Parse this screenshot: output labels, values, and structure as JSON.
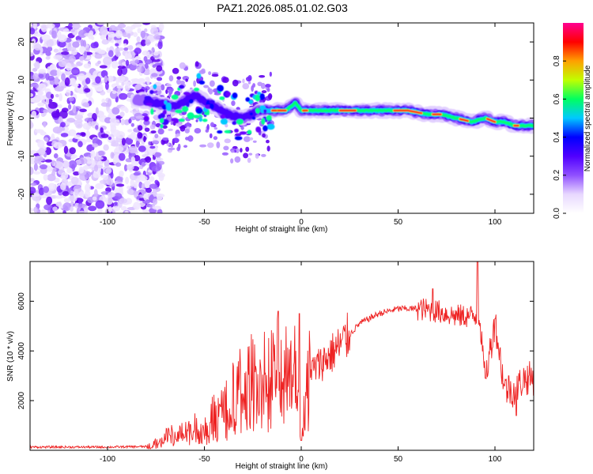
{
  "title": "PAZ1.2026.085.01.02.G03",
  "chart_data": [
    {
      "type": "heatmap",
      "title": "PAZ1.2026.085.01.02.G03",
      "xlabel": "Height of straight line (km)",
      "ylabel": "Frequency (Hz)",
      "xlim": [
        -140,
        120
      ],
      "ylim": [
        -25,
        25
      ],
      "xticks": [
        -100,
        -50,
        0,
        50,
        100
      ],
      "yticks": [
        -20,
        -10,
        0,
        10,
        20
      ],
      "xtick_labels": [
        "-100",
        "-50",
        "0",
        "50",
        "100"
      ],
      "ytick_labels": [
        "-20",
        "-10",
        "0",
        "10",
        "20"
      ],
      "colorbar": {
        "label": "Normalized spectral amplitude",
        "range": [
          0.0,
          1.0
        ],
        "ticks": [
          0.0,
          0.2,
          0.4,
          0.6,
          0.8
        ],
        "tick_labels": [
          "0.0",
          "0.2",
          "0.4",
          "0.6",
          "0.8"
        ],
        "colors": [
          "#ffffff",
          "#e8d8ff",
          "#9050ff",
          "#5000ff",
          "#0000ff",
          "#00c8ff",
          "#00ff60",
          "#c0ff00",
          "#ffa000",
          "#ff0000",
          "#ff0090"
        ]
      },
      "ridge": {
        "x": [
          -85,
          -75,
          -65,
          -55,
          -45,
          -38,
          -30,
          -22,
          -15,
          -8,
          -3,
          0,
          5,
          15,
          30,
          45,
          55,
          65,
          72,
          80,
          88,
          95,
          100,
          105,
          110,
          118
        ],
        "freq_hz": [
          5,
          4,
          3,
          6,
          3,
          1,
          0,
          2,
          2,
          2,
          4,
          2,
          2,
          2,
          2,
          2,
          2,
          1,
          1,
          0,
          -1,
          0,
          -1,
          -1,
          -2,
          -2
        ]
      },
      "noise_region": {
        "x_range": [
          -140,
          -80
        ],
        "freq_range": [
          -25,
          25
        ]
      }
    },
    {
      "type": "line",
      "xlabel": "Height of straight line (km)",
      "ylabel": "SNR (10 * v/v)",
      "xlim": [
        -140,
        120
      ],
      "ylim": [
        0,
        7600
      ],
      "xticks": [
        -100,
        -50,
        0,
        50,
        100
      ],
      "yticks": [
        2000,
        4000,
        6000
      ],
      "xtick_labels": [
        "-100",
        "-50",
        "0",
        "50",
        "100"
      ],
      "ytick_labels": [
        "2000",
        "4000",
        "6000"
      ],
      "color": "#ee2222",
      "envelope": {
        "x": [
          -140,
          -100,
          -80,
          -75,
          -70,
          -60,
          -50,
          -40,
          -30,
          -20,
          -10,
          -2,
          0,
          3,
          10,
          20,
          30,
          40,
          50,
          60,
          70,
          80,
          88,
          92,
          95,
          100,
          105,
          110,
          115,
          120
        ],
        "snr": [
          130,
          130,
          150,
          280,
          520,
          750,
          950,
          1700,
          2700,
          3100,
          3300,
          3700,
          500,
          3000,
          3500,
          4200,
          5100,
          5500,
          5700,
          5700,
          5600,
          5400,
          5400,
          5400,
          2800,
          5200,
          2500,
          2400,
          2900,
          2900
        ]
      },
      "spikes": [
        {
          "x": -12,
          "snr": 5600
        },
        {
          "x": -1,
          "snr": 5500
        },
        {
          "x": 0,
          "snr": 400
        },
        {
          "x": 68,
          "snr": 6500
        },
        {
          "x": 91,
          "snr": 7600
        },
        {
          "x": 95,
          "snr": 2900
        },
        {
          "x": 100,
          "snr": 5300
        },
        {
          "x": 107,
          "snr": 3000
        },
        {
          "x": 111,
          "snr": 1400
        }
      ]
    }
  ]
}
